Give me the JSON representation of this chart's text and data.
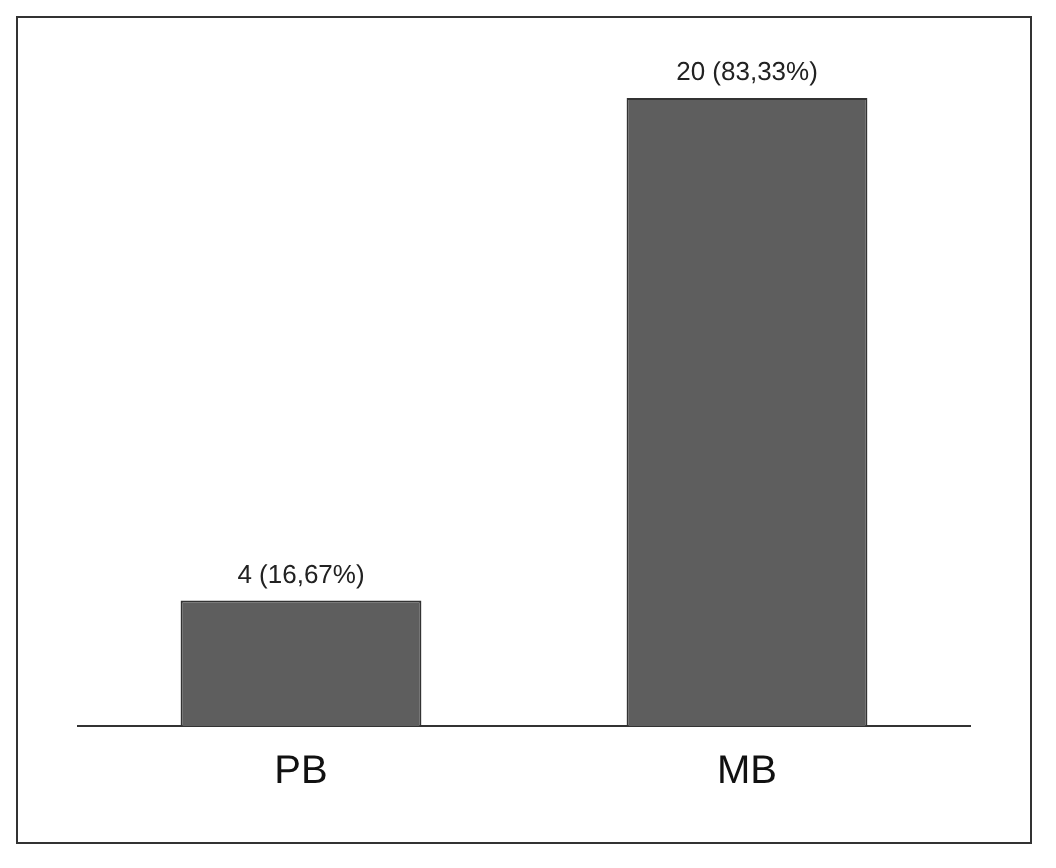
{
  "chart_data": {
    "type": "bar",
    "categories": [
      "PB",
      "MB"
    ],
    "values": [
      4,
      20
    ],
    "color": "#5e5e5e",
    "value_labels": [
      "4 (16,67%)",
      "20 (83,33%)"
    ],
    "grid": false,
    "legend": false
  }
}
